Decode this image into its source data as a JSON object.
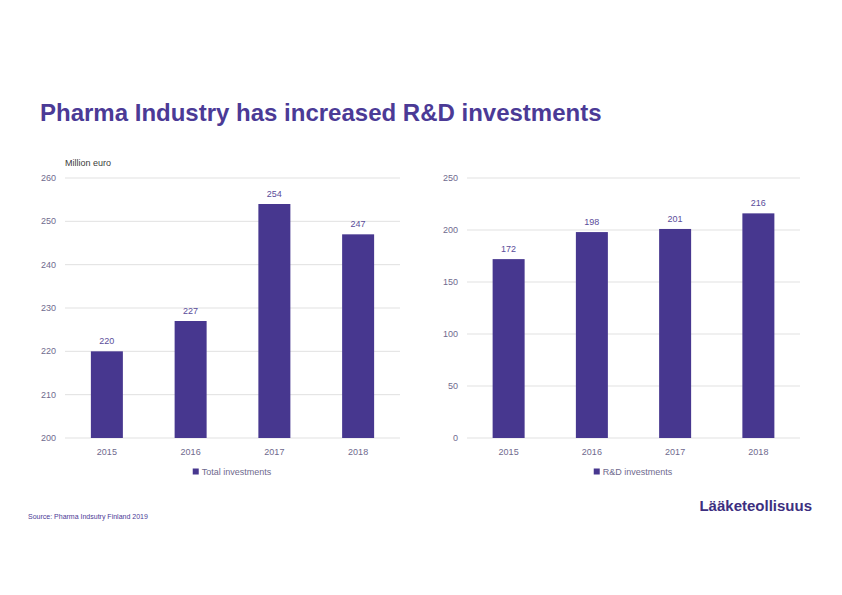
{
  "title": "Pharma Industry has increased R&D investments",
  "chart_data": [
    {
      "type": "bar",
      "y_label": "Million euro",
      "categories": [
        "2015",
        "2016",
        "2017",
        "2018"
      ],
      "series": [
        {
          "name": "Total investments",
          "color": "#47378f",
          "values": [
            220,
            227,
            254,
            247
          ]
        }
      ],
      "ylim": [
        200,
        260
      ],
      "yticks": [
        200,
        210,
        220,
        230,
        240,
        250,
        260
      ],
      "grid": true,
      "legend": "bottom",
      "data_labels": true
    },
    {
      "type": "bar",
      "categories": [
        "2015",
        "2016",
        "2017",
        "2018"
      ],
      "series": [
        {
          "name": "R&D investments",
          "color": "#47378f",
          "values": [
            172,
            198,
            201,
            216
          ]
        }
      ],
      "ylim": [
        0,
        250
      ],
      "yticks": [
        0,
        50,
        100,
        150,
        200,
        250
      ],
      "grid": true,
      "legend": "bottom",
      "data_labels": true
    }
  ],
  "source": "Source: Pharma Indsutry Finland 2019",
  "logo": "Lääketeollisuus"
}
